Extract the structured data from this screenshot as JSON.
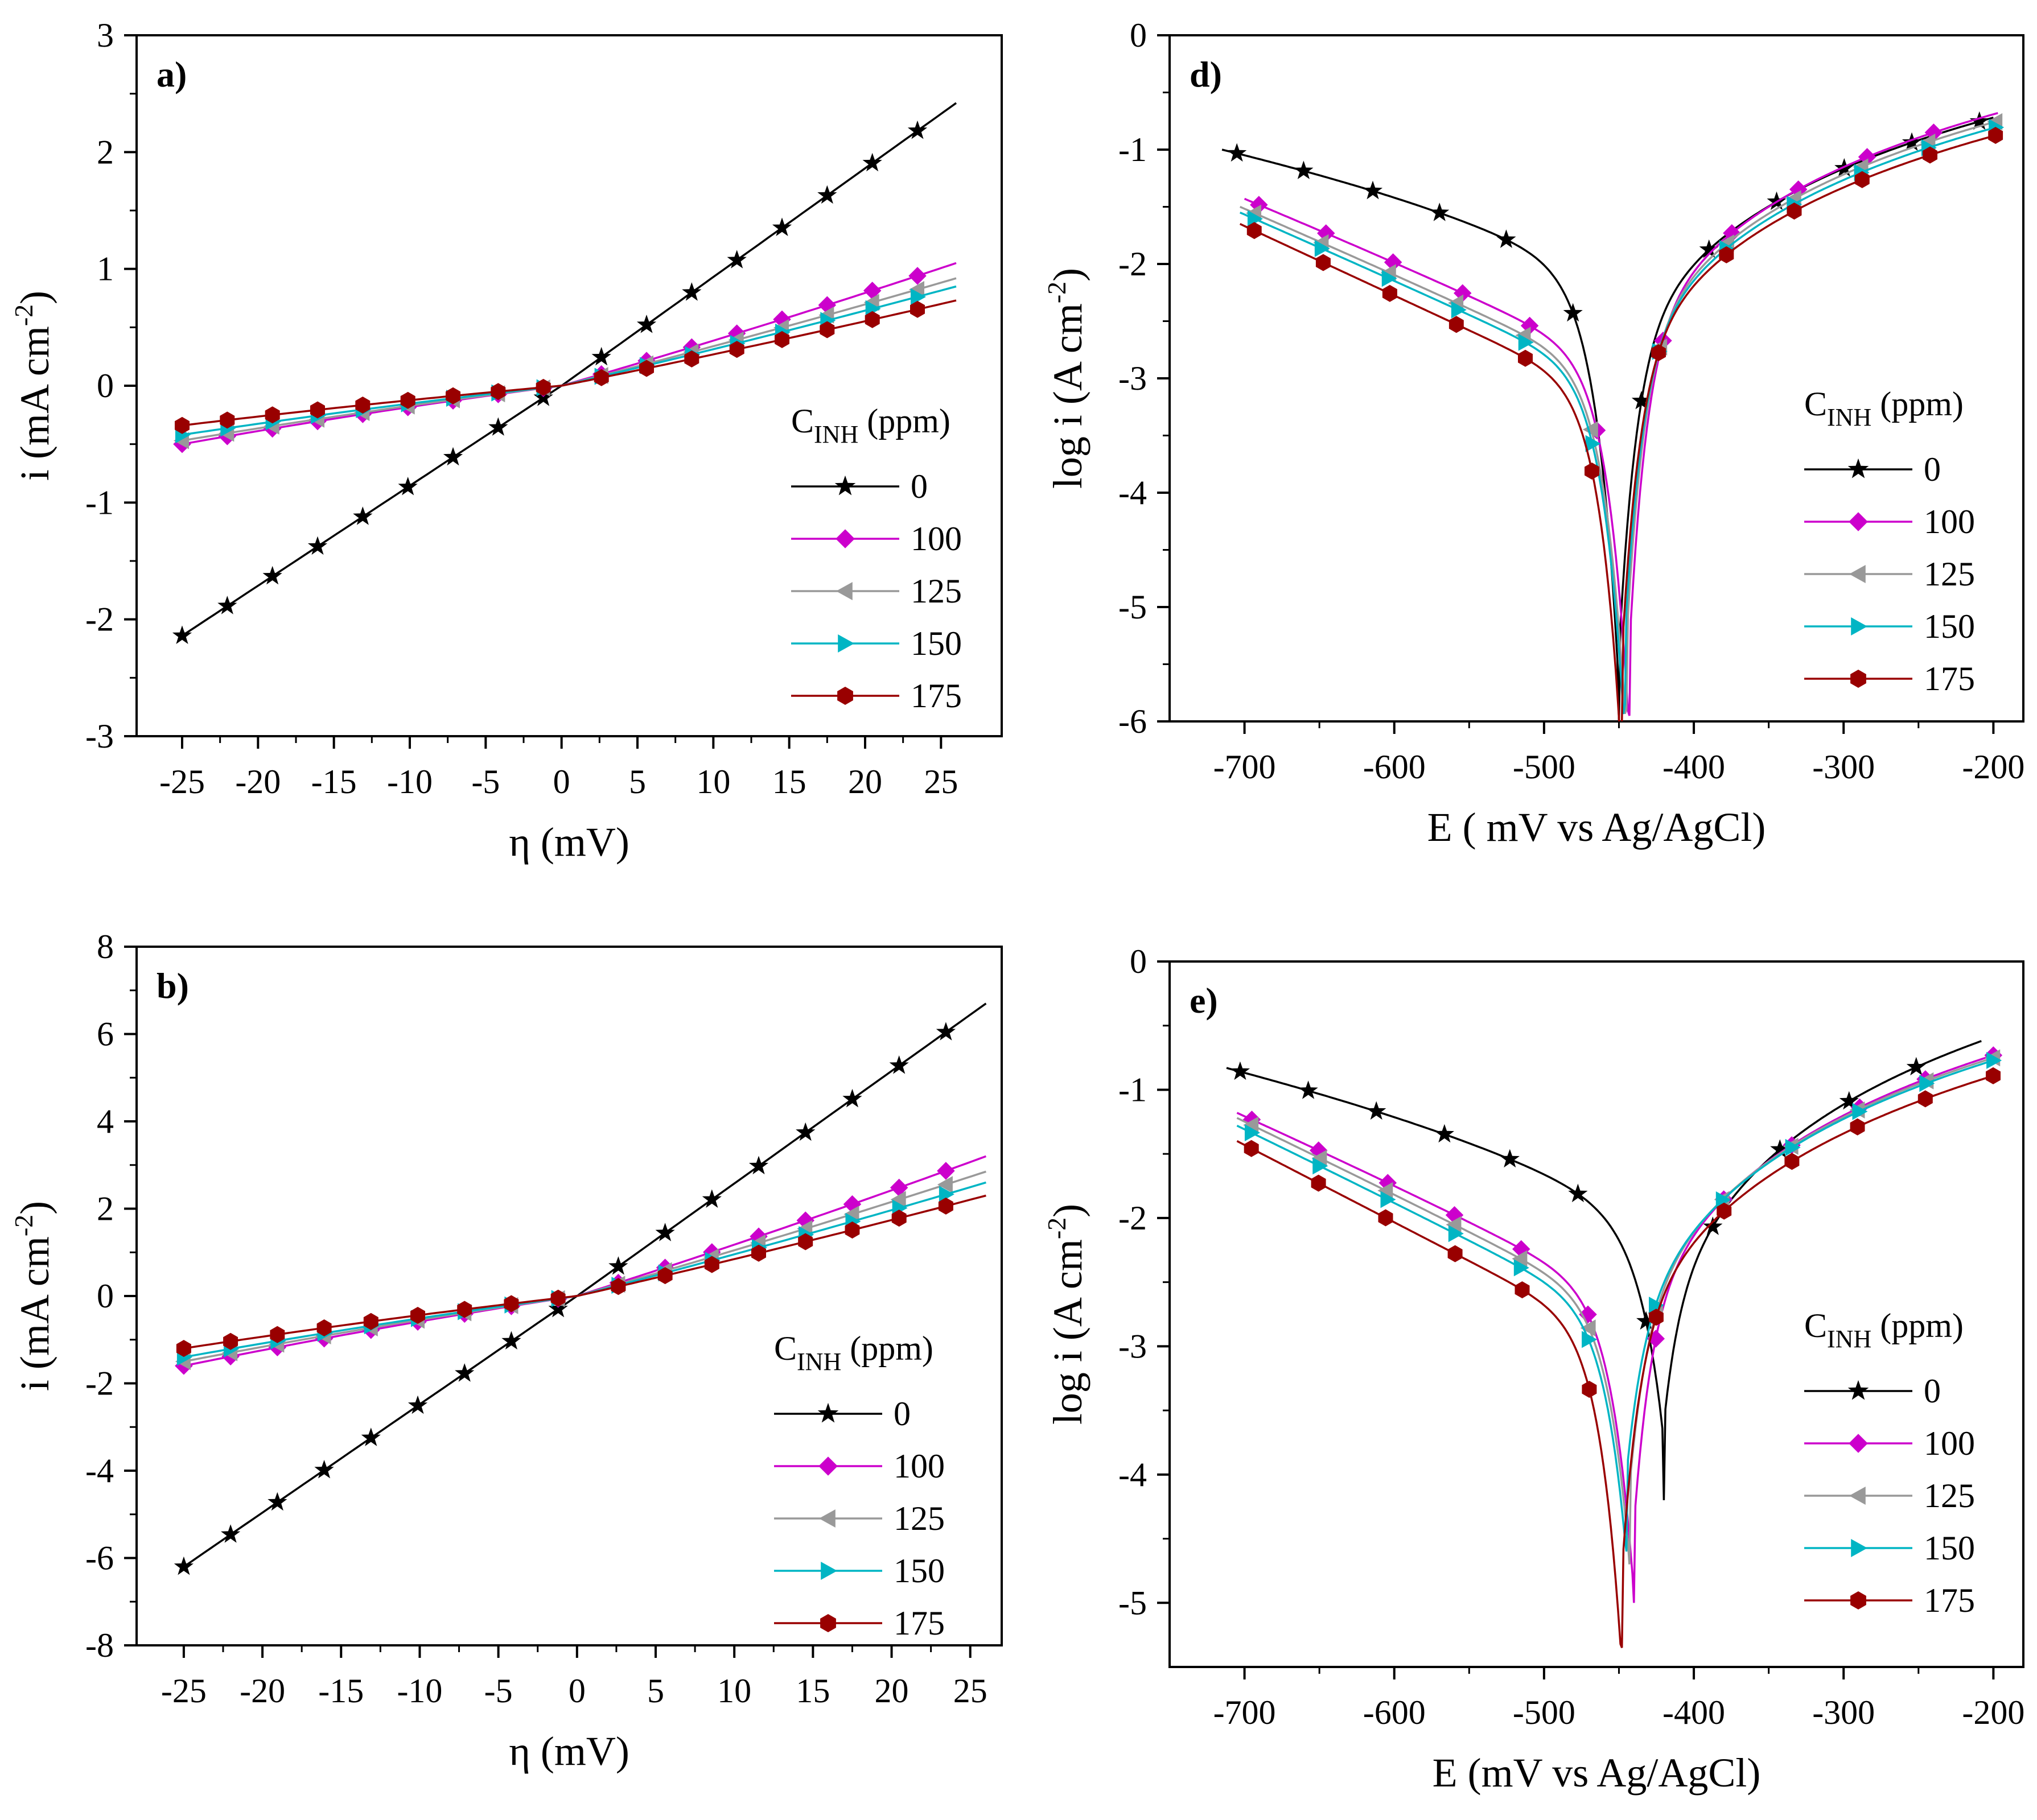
{
  "chart_data": [
    {
      "id": "a",
      "type": "line",
      "panel_label": "a)",
      "xlabel": "η (mV)",
      "ylabel_main": "i  (mA cm",
      "ylabel_sup": "-2",
      "ylabel_tail": ")",
      "xlim": [
        -28,
        29
      ],
      "ylim": [
        -3,
        3
      ],
      "xticks": [
        -25,
        -20,
        -15,
        -10,
        -5,
        0,
        5,
        10,
        15,
        20,
        25
      ],
      "yticks": [
        -3,
        -2,
        -1,
        0,
        1,
        2,
        3
      ],
      "legend": {
        "title_main": "C",
        "title_sub": "INH",
        "title_tail": " (ppm)",
        "position": "right-middle"
      },
      "series": [
        {
          "name": "0",
          "color": "#000000",
          "marker": "star",
          "start": [
            -25,
            -2.14
          ],
          "end": [
            26,
            2.42
          ],
          "knee": 0
        },
        {
          "name": "100",
          "color": "#cc00cc",
          "marker": "diamond",
          "start": [
            -25,
            -0.5
          ],
          "end": [
            26,
            1.05
          ],
          "knee": 0.6
        },
        {
          "name": "125",
          "color": "#999999",
          "marker": "triangle-left",
          "start": [
            -25,
            -0.47
          ],
          "end": [
            26,
            0.92
          ],
          "knee": 0.6
        },
        {
          "name": "150",
          "color": "#00b5c4",
          "marker": "triangle-right",
          "start": [
            -25,
            -0.42
          ],
          "end": [
            26,
            0.85
          ],
          "knee": 0.6
        },
        {
          "name": "175",
          "color": "#990000",
          "marker": "hexagon",
          "start": [
            -25,
            -0.34
          ],
          "end": [
            26,
            0.73
          ],
          "knee": 0.6
        }
      ]
    },
    {
      "id": "b",
      "type": "line",
      "panel_label": "b)",
      "xlabel": "η (mV)",
      "ylabel_main": "i  (mA cm",
      "ylabel_sup": "-2",
      "ylabel_tail": ")",
      "xlim": [
        -28,
        27
      ],
      "ylim": [
        -8,
        8
      ],
      "xticks": [
        -25,
        -20,
        -15,
        -10,
        -5,
        0,
        5,
        10,
        15,
        20,
        25
      ],
      "yticks": [
        -8,
        -6,
        -4,
        -2,
        0,
        2,
        4,
        6,
        8
      ],
      "legend": {
        "title_main": "C",
        "title_sub": "INH",
        "title_tail": " (ppm)",
        "position": "right-middle"
      },
      "series": [
        {
          "name": "0",
          "color": "#000000",
          "marker": "star",
          "start": [
            -25,
            -6.2
          ],
          "end": [
            26,
            6.7
          ],
          "knee": 0
        },
        {
          "name": "100",
          "color": "#cc00cc",
          "marker": "diamond",
          "start": [
            -25,
            -1.6
          ],
          "end": [
            26,
            3.2
          ],
          "knee": 0.6
        },
        {
          "name": "125",
          "color": "#999999",
          "marker": "triangle-left",
          "start": [
            -25,
            -1.5
          ],
          "end": [
            26,
            2.85
          ],
          "knee": 0.6
        },
        {
          "name": "150",
          "color": "#00b5c4",
          "marker": "triangle-right",
          "start": [
            -25,
            -1.4
          ],
          "end": [
            26,
            2.6
          ],
          "knee": 0.6
        },
        {
          "name": "175",
          "color": "#990000",
          "marker": "hexagon",
          "start": [
            -25,
            -1.2
          ],
          "end": [
            26,
            2.3
          ],
          "knee": 0.6
        }
      ]
    },
    {
      "id": "d",
      "type": "line",
      "panel_label": "d)",
      "xlabel": "E ( mV vs Ag/AgCl)",
      "ylabel_main": "log  i  (A cm",
      "ylabel_sup": "-2",
      "ylabel_tail": ")",
      "xlim": [
        -750,
        -180
      ],
      "ylim": [
        -6,
        0
      ],
      "xticks": [
        -700,
        -600,
        -500,
        -400,
        -300,
        -200
      ],
      "yticks": [
        -6,
        -5,
        -4,
        -3,
        -2,
        -1,
        0
      ],
      "legend": {
        "title_main": "C",
        "title_sub": "INH",
        "title_tail": " (ppm)",
        "position": "right-middle"
      },
      "series": [
        {
          "name": "0",
          "color": "#000000",
          "marker": "star",
          "ecorr": -450,
          "vmin": -6.0,
          "x_start": -715,
          "y_start": -1.0,
          "x_end": -200,
          "y_end": -0.72,
          "cathodic_shape": 1.8
        },
        {
          "name": "100",
          "color": "#cc00cc",
          "marker": "diamond",
          "ecorr": -443,
          "vmin": -5.95,
          "x_start": -700,
          "y_start": -1.43,
          "x_end": -197,
          "y_end": -0.68,
          "cathodic_shape": 1.1
        },
        {
          "name": "125",
          "color": "#999999",
          "marker": "triangle-left",
          "ecorr": -445,
          "vmin": -5.9,
          "x_start": -703,
          "y_start": -1.5,
          "x_end": -197,
          "y_end": -0.75,
          "cathodic_shape": 1.05
        },
        {
          "name": "150",
          "color": "#00b5c4",
          "marker": "triangle-right",
          "ecorr": -446,
          "vmin": -5.85,
          "x_start": -703,
          "y_start": -1.55,
          "x_end": -197,
          "y_end": -0.8,
          "cathodic_shape": 1.05
        },
        {
          "name": "175",
          "color": "#990000",
          "marker": "hexagon",
          "ecorr": -448,
          "vmin": -6.0,
          "x_start": -703,
          "y_start": -1.65,
          "x_end": -197,
          "y_end": -0.87,
          "cathodic_shape": 1.0
        }
      ]
    },
    {
      "id": "e",
      "type": "line",
      "panel_label": "e)",
      "xlabel": "E (mV vs Ag/AgCl)",
      "ylabel_main": "log  i  (A cm",
      "ylabel_sup": "-2",
      "ylabel_tail": ")",
      "xlim": [
        -750,
        -180
      ],
      "ylim": [
        -5.5,
        0
      ],
      "xticks": [
        -700,
        -600,
        -500,
        -400,
        -300,
        -200
      ],
      "yticks": [
        -5,
        -4,
        -3,
        -2,
        -1,
        0
      ],
      "legend": {
        "title_main": "C",
        "title_sub": "INH",
        "title_tail": " (ppm)",
        "position": "right-lower"
      },
      "series": [
        {
          "name": "0",
          "color": "#000000",
          "marker": "star",
          "ecorr": -420,
          "vmin": -4.2,
          "x_start": -712,
          "y_start": -0.83,
          "x_end": -208,
          "y_end": -0.62,
          "cathodic_shape": 1.7
        },
        {
          "name": "100",
          "color": "#cc00cc",
          "marker": "diamond",
          "ecorr": -440,
          "vmin": -5.0,
          "x_start": -705,
          "y_start": -1.18,
          "x_end": -197,
          "y_end": -0.72,
          "cathodic_shape": 1.1
        },
        {
          "name": "125",
          "color": "#999999",
          "marker": "triangle-left",
          "ecorr": -443,
          "vmin": -4.7,
          "x_start": -705,
          "y_start": -1.22,
          "x_end": -197,
          "y_end": -0.74,
          "cathodic_shape": 1.05
        },
        {
          "name": "150",
          "color": "#00b5c4",
          "marker": "triangle-right",
          "ecorr": -445,
          "vmin": -4.6,
          "x_start": -705,
          "y_start": -1.28,
          "x_end": -197,
          "y_end": -0.76,
          "cathodic_shape": 1.05
        },
        {
          "name": "175",
          "color": "#990000",
          "marker": "hexagon",
          "ecorr": -448,
          "vmin": -5.35,
          "x_start": -705,
          "y_start": -1.4,
          "x_end": -197,
          "y_end": -0.88,
          "cathodic_shape": 1.0
        }
      ]
    }
  ]
}
